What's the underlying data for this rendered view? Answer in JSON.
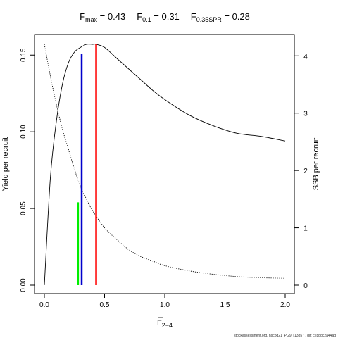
{
  "chart_data": {
    "type": "line",
    "title_parts": [
      {
        "main": "F",
        "sub": "max",
        "rest": " = 0.43"
      },
      {
        "main": "F",
        "sub": "0.1",
        "rest": " = 0.31"
      },
      {
        "main": "F",
        "sub": "0.35SPR",
        "rest": " = 0.28"
      }
    ],
    "xlabel_main": "F",
    "xlabel_sub": "2−4",
    "ylabel": "Yield per recruit",
    "ylabel_right": "SSB per recruit",
    "xlim": [
      0,
      2
    ],
    "ylim": [
      0,
      0.157
    ],
    "ylim_right": [
      0,
      4.2
    ],
    "x_ticks": [
      "0.0",
      "0.5",
      "1.0",
      "1.5",
      "2.0"
    ],
    "x_tick_values": [
      0,
      0.5,
      1.0,
      1.5,
      2.0
    ],
    "y_ticks": [
      "0.00",
      "0.05",
      "0.10",
      "0.15"
    ],
    "y_tick_values": [
      0,
      0.05,
      0.1,
      0.15
    ],
    "y_right_ticks": [
      "0",
      "1",
      "2",
      "3",
      "4"
    ],
    "y_right_tick_values": [
      0,
      1,
      2,
      3,
      4
    ],
    "series": [
      {
        "axis": "left",
        "style": "solid",
        "color": "#000000",
        "x": [
          0,
          0.05,
          0.1,
          0.15,
          0.2,
          0.25,
          0.3,
          0.35,
          0.4,
          0.43,
          0.5,
          0.6,
          0.7,
          0.8,
          0.9,
          1.0,
          1.2,
          1.4,
          1.6,
          1.8,
          2.0
        ],
        "y": [
          0,
          0.07,
          0.107,
          0.131,
          0.145,
          0.152,
          0.155,
          0.157,
          0.157,
          0.157,
          0.155,
          0.148,
          0.141,
          0.134,
          0.127,
          0.121,
          0.111,
          0.104,
          0.099,
          0.097,
          0.094
        ]
      },
      {
        "axis": "right",
        "style": "dotted",
        "color": "#000000",
        "x": [
          0,
          0.05,
          0.1,
          0.15,
          0.2,
          0.25,
          0.3,
          0.35,
          0.4,
          0.5,
          0.6,
          0.7,
          0.8,
          0.9,
          1.0,
          1.2,
          1.4,
          1.6,
          1.8,
          2.0
        ],
        "y": [
          4.2,
          3.65,
          3.15,
          2.72,
          2.37,
          2.02,
          1.72,
          1.5,
          1.3,
          1.0,
          0.8,
          0.62,
          0.5,
          0.42,
          0.34,
          0.25,
          0.19,
          0.15,
          0.13,
          0.12
        ]
      }
    ],
    "reference_lines": [
      {
        "x": 0.43,
        "y": 0.157,
        "color": "#ff0000"
      },
      {
        "x": 0.31,
        "y": 0.151,
        "color": "#0000cc"
      },
      {
        "x": 0.28,
        "y": 0.054,
        "color": "#00ee00"
      }
    ],
    "grid": false
  },
  "footer_text": "stockassessment.org, nscod21_PG9, r13857 ,  git: c28bdc2a44ad"
}
